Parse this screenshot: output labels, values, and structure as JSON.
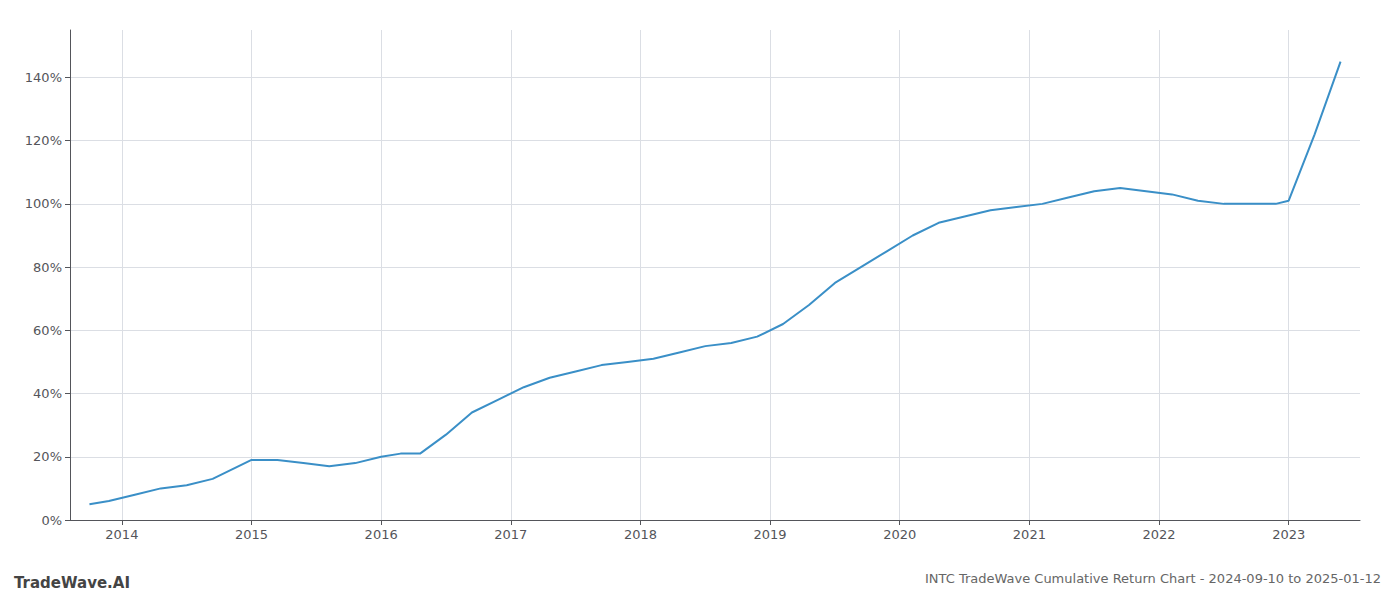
{
  "chart_data": {
    "type": "line",
    "title": "INTC TradeWave Cumulative Return Chart - 2024-09-10 to 2025-01-12",
    "annotations": [
      "TradeWave.AI"
    ],
    "color": "#3a8fc7",
    "x": [
      2013.75,
      2013.9,
      2014.1,
      2014.3,
      2014.5,
      2014.7,
      2014.85,
      2015.0,
      2015.2,
      2015.4,
      2015.6,
      2015.8,
      2016.0,
      2016.15,
      2016.3,
      2016.5,
      2016.7,
      2016.9,
      2017.1,
      2017.3,
      2017.5,
      2017.7,
      2017.9,
      2018.1,
      2018.3,
      2018.5,
      2018.7,
      2018.9,
      2019.1,
      2019.3,
      2019.5,
      2019.7,
      2019.9,
      2020.1,
      2020.3,
      2020.5,
      2020.7,
      2020.9,
      2021.1,
      2021.3,
      2021.5,
      2021.7,
      2021.9,
      2022.1,
      2022.3,
      2022.5,
      2022.7,
      2022.9,
      2023.0,
      2023.2,
      2023.4
    ],
    "values": [
      5,
      6,
      8,
      10,
      11,
      13,
      16,
      19,
      19,
      18,
      17,
      18,
      20,
      21,
      21,
      27,
      34,
      38,
      42,
      45,
      47,
      49,
      50,
      51,
      53,
      55,
      56,
      58,
      62,
      68,
      75,
      80,
      85,
      90,
      94,
      96,
      98,
      99,
      100,
      102,
      104,
      105,
      104,
      103,
      101,
      100,
      100,
      100,
      101,
      122,
      145
    ],
    "xlim": [
      2013.6,
      2023.55
    ],
    "xticks": [
      2014,
      2015,
      2016,
      2017,
      2018,
      2019,
      2020,
      2021,
      2022,
      2023
    ],
    "ylim": [
      0,
      155
    ],
    "yticks": [
      {
        "value": 0,
        "label": "0%"
      },
      {
        "value": 20,
        "label": "20%"
      },
      {
        "value": 40,
        "label": "40%"
      },
      {
        "value": 60,
        "label": "60%"
      },
      {
        "value": 80,
        "label": "80%"
      },
      {
        "value": 100,
        "label": "100%"
      },
      {
        "value": 120,
        "label": "120%"
      },
      {
        "value": 140,
        "label": "140%"
      }
    ],
    "grid": true
  }
}
